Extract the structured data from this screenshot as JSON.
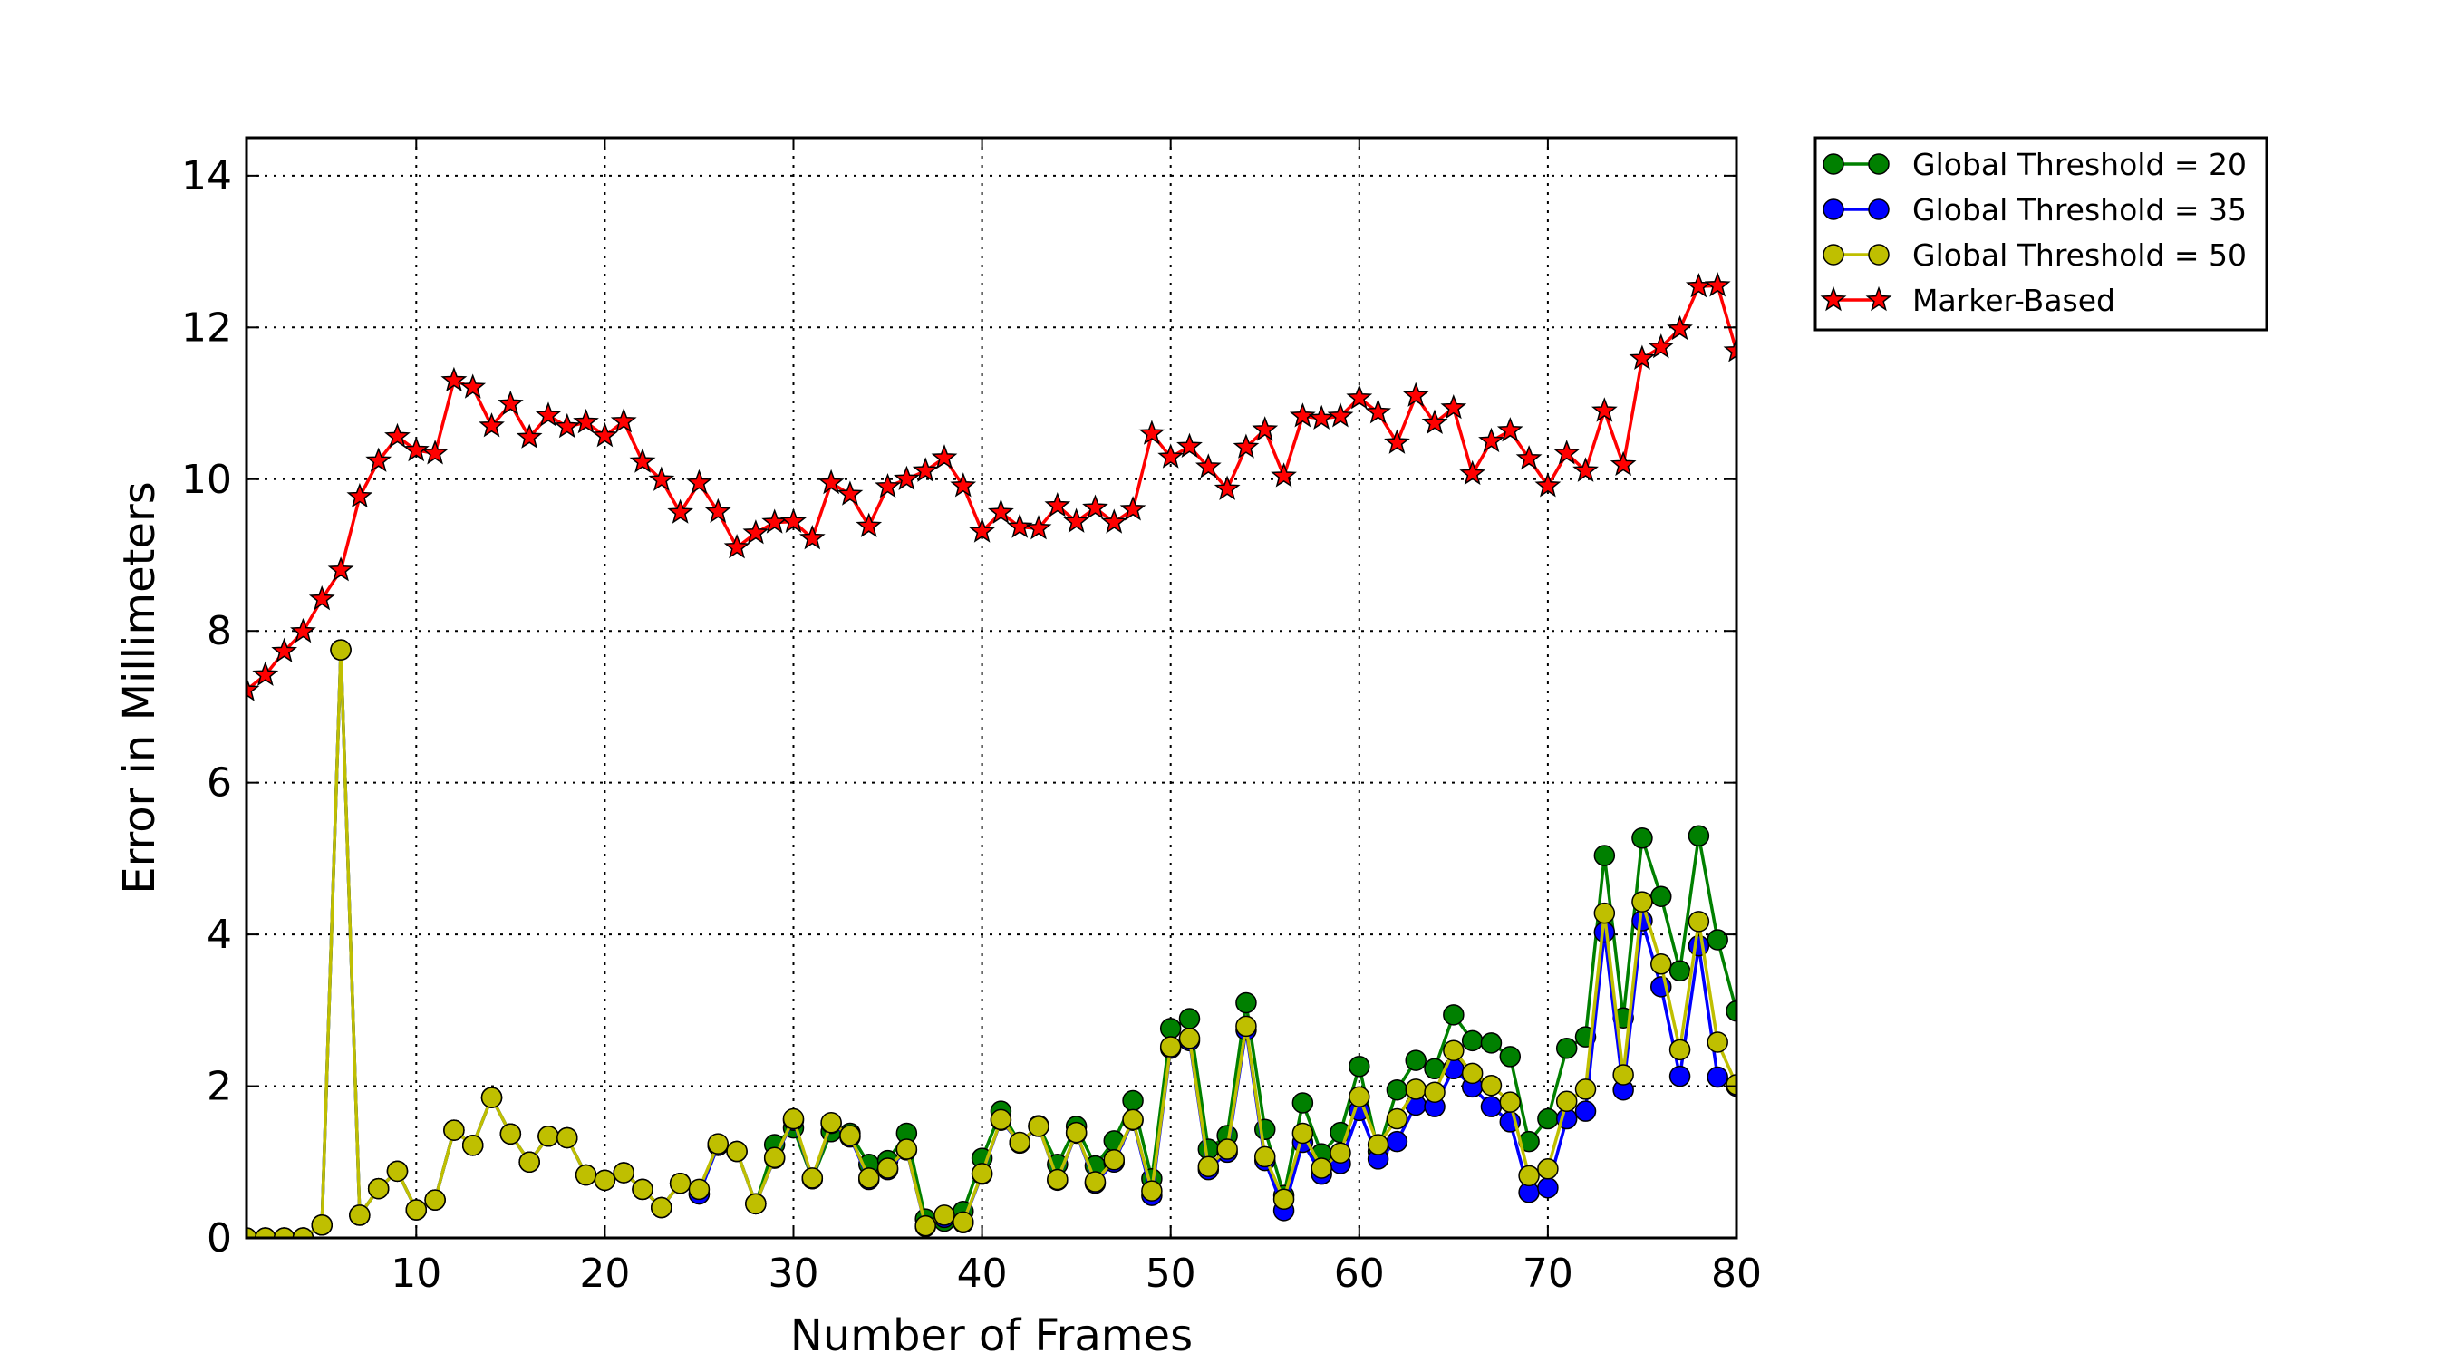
{
  "chart_data": {
    "type": "line",
    "title": "",
    "xlabel": "Number of Frames",
    "ylabel": "Error in Millimeters",
    "xlim": [
      1,
      80
    ],
    "ylim": [
      0,
      14.5
    ],
    "xticks": [
      10,
      20,
      30,
      40,
      50,
      60,
      70,
      80
    ],
    "yticks": [
      0,
      2,
      4,
      6,
      8,
      10,
      12,
      14
    ],
    "grid": true,
    "legend_position": "outside-top-right",
    "x": [
      1,
      2,
      3,
      4,
      5,
      6,
      7,
      8,
      9,
      10,
      11,
      12,
      13,
      14,
      15,
      16,
      17,
      18,
      19,
      20,
      21,
      22,
      23,
      24,
      25,
      26,
      27,
      28,
      29,
      30,
      31,
      32,
      33,
      34,
      35,
      36,
      37,
      38,
      39,
      40,
      41,
      42,
      43,
      44,
      45,
      46,
      47,
      48,
      49,
      50,
      51,
      52,
      53,
      54,
      55,
      56,
      57,
      58,
      59,
      60,
      61,
      62,
      63,
      64,
      65,
      66,
      67,
      68,
      69,
      70,
      71,
      72,
      73,
      74,
      75,
      76,
      77,
      78,
      79,
      80
    ],
    "series": [
      {
        "name": "Global Threshold = 20",
        "color": "#008000",
        "marker": "circle",
        "values": [
          0.0,
          0.0,
          0.0,
          0.0,
          0.17,
          7.75,
          0.3,
          0.65,
          0.88,
          0.37,
          0.5,
          1.42,
          1.22,
          1.85,
          1.37,
          1.0,
          1.34,
          1.32,
          0.83,
          0.76,
          0.86,
          0.64,
          0.4,
          0.72,
          0.58,
          1.22,
          1.14,
          0.45,
          1.23,
          1.45,
          0.78,
          1.4,
          1.38,
          0.97,
          1.02,
          1.38,
          0.25,
          0.22,
          0.35,
          1.05,
          1.67,
          1.25,
          1.48,
          0.97,
          1.47,
          0.95,
          1.28,
          1.81,
          0.78,
          2.76,
          2.89,
          1.17,
          1.35,
          3.1,
          1.43,
          0.56,
          1.78,
          1.11,
          1.39,
          2.26,
          1.14,
          1.95,
          2.34,
          2.23,
          2.94,
          2.6,
          2.57,
          2.39,
          1.27,
          1.57,
          2.5,
          2.65,
          5.04,
          2.9,
          5.27,
          4.5,
          3.52,
          5.3,
          3.93,
          2.99
        ]
      },
      {
        "name": "Global Threshold = 35",
        "color": "#0000ff",
        "marker": "circle",
        "values": [
          0.0,
          0.0,
          0.0,
          0.0,
          0.17,
          7.75,
          0.3,
          0.65,
          0.88,
          0.37,
          0.5,
          1.42,
          1.22,
          1.85,
          1.37,
          1.0,
          1.34,
          1.32,
          0.83,
          0.76,
          0.86,
          0.64,
          0.4,
          0.72,
          0.58,
          1.22,
          1.14,
          0.45,
          1.05,
          1.55,
          0.78,
          1.51,
          1.33,
          0.77,
          0.9,
          1.16,
          0.15,
          0.27,
          0.2,
          0.84,
          1.55,
          1.25,
          1.47,
          0.76,
          1.38,
          0.72,
          1.0,
          1.55,
          0.56,
          2.5,
          2.6,
          0.9,
          1.13,
          2.74,
          1.02,
          0.36,
          1.26,
          0.84,
          0.98,
          1.68,
          1.04,
          1.27,
          1.75,
          1.73,
          2.23,
          1.99,
          1.73,
          1.53,
          0.6,
          0.66,
          1.57,
          1.67,
          4.03,
          1.95,
          4.18,
          3.31,
          2.13,
          3.85,
          2.12,
          2.0
        ]
      },
      {
        "name": "Global Threshold = 50",
        "color": "#bfbf00",
        "marker": "circle",
        "values": [
          0.0,
          0.0,
          0.0,
          0.0,
          0.17,
          7.75,
          0.3,
          0.65,
          0.88,
          0.37,
          0.5,
          1.42,
          1.22,
          1.85,
          1.37,
          1.0,
          1.34,
          1.32,
          0.83,
          0.76,
          0.86,
          0.64,
          0.4,
          0.72,
          0.64,
          1.24,
          1.14,
          0.45,
          1.06,
          1.57,
          0.79,
          1.52,
          1.35,
          0.79,
          0.92,
          1.17,
          0.16,
          0.3,
          0.21,
          0.85,
          1.56,
          1.26,
          1.47,
          0.77,
          1.39,
          0.74,
          1.03,
          1.56,
          0.62,
          2.52,
          2.63,
          0.94,
          1.17,
          2.79,
          1.07,
          0.51,
          1.38,
          0.92,
          1.12,
          1.86,
          1.23,
          1.57,
          1.96,
          1.92,
          2.47,
          2.17,
          2.01,
          1.79,
          0.82,
          0.91,
          1.8,
          1.96,
          4.28,
          2.15,
          4.43,
          3.61,
          2.48,
          4.17,
          2.58,
          2.02
        ]
      },
      {
        "name": "Marker-Based",
        "color": "#ff0000",
        "marker": "star",
        "values": [
          7.22,
          7.42,
          7.73,
          7.99,
          8.42,
          8.8,
          9.77,
          10.24,
          10.56,
          10.38,
          10.34,
          11.3,
          11.21,
          10.7,
          10.99,
          10.55,
          10.84,
          10.69,
          10.75,
          10.57,
          10.76,
          10.23,
          9.99,
          9.56,
          9.95,
          9.57,
          9.1,
          9.29,
          9.43,
          9.44,
          9.22,
          9.95,
          9.8,
          9.38,
          9.9,
          10.0,
          10.11,
          10.28,
          9.91,
          9.31,
          9.56,
          9.37,
          9.35,
          9.65,
          9.44,
          9.62,
          9.43,
          9.6,
          10.6,
          10.29,
          10.43,
          10.16,
          9.87,
          10.42,
          10.65,
          10.04,
          10.83,
          10.8,
          10.83,
          11.07,
          10.88,
          10.48,
          11.1,
          10.74,
          10.94,
          10.07,
          10.5,
          10.64,
          10.27,
          9.91,
          10.34,
          10.11,
          10.9,
          10.19,
          11.59,
          11.74,
          11.98,
          12.54,
          12.55,
          11.69
        ]
      }
    ]
  }
}
